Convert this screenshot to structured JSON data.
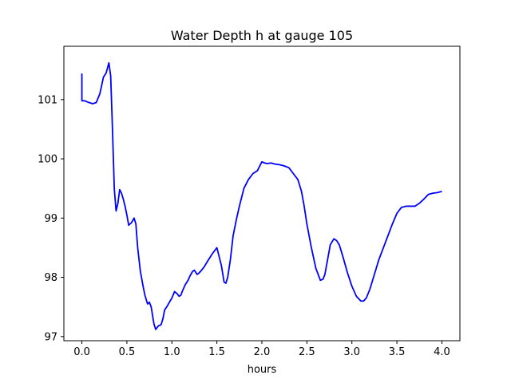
{
  "chart_data": {
    "type": "line",
    "title": "Water Depth h at gauge 105",
    "xlabel": "hours",
    "ylabel": "",
    "xlim": [
      -0.2,
      4.2
    ],
    "ylim": [
      96.93,
      101.9
    ],
    "xticks": [
      0.0,
      0.5,
      1.0,
      1.5,
      2.0,
      2.5,
      3.0,
      3.5,
      4.0
    ],
    "xtick_labels": [
      "0.0",
      "0.5",
      "1.0",
      "1.5",
      "2.0",
      "2.5",
      "3.0",
      "3.5",
      "4.0"
    ],
    "yticks": [
      97,
      98,
      99,
      100,
      101
    ],
    "ytick_labels": [
      "97",
      "98",
      "99",
      "100",
      "101"
    ],
    "grid": false,
    "series": [
      {
        "color": "#0000ff",
        "x": [
          0.0,
          0.0,
          0.03,
          0.08,
          0.12,
          0.16,
          0.2,
          0.24,
          0.27,
          0.3,
          0.32,
          0.34,
          0.36,
          0.38,
          0.4,
          0.42,
          0.44,
          0.46,
          0.48,
          0.5,
          0.52,
          0.55,
          0.58,
          0.6,
          0.62,
          0.65,
          0.68,
          0.7,
          0.73,
          0.75,
          0.77,
          0.8,
          0.82,
          0.85,
          0.88,
          0.9,
          0.92,
          0.95,
          0.98,
          1.0,
          1.03,
          1.06,
          1.08,
          1.1,
          1.12,
          1.15,
          1.18,
          1.2,
          1.23,
          1.25,
          1.28,
          1.3,
          1.33,
          1.36,
          1.4,
          1.45,
          1.5,
          1.55,
          1.58,
          1.6,
          1.62,
          1.65,
          1.68,
          1.7,
          1.72,
          1.75,
          1.8,
          1.85,
          1.9,
          1.95,
          2.0,
          2.03,
          2.06,
          2.1,
          2.15,
          2.2,
          2.25,
          2.3,
          2.35,
          2.4,
          2.44,
          2.47,
          2.5,
          2.55,
          2.6,
          2.65,
          2.68,
          2.7,
          2.73,
          2.76,
          2.8,
          2.83,
          2.86,
          2.9,
          2.95,
          3.0,
          3.05,
          3.1,
          3.13,
          3.16,
          3.2,
          3.25,
          3.3,
          3.35,
          3.4,
          3.45,
          3.5,
          3.55,
          3.6,
          3.65,
          3.7,
          3.75,
          3.8,
          3.85,
          3.9,
          3.95,
          4.0
        ],
        "y": [
          101.44,
          100.98,
          100.98,
          100.95,
          100.93,
          100.95,
          101.1,
          101.38,
          101.45,
          101.62,
          101.4,
          100.5,
          99.5,
          99.12,
          99.25,
          99.48,
          99.42,
          99.32,
          99.2,
          99.05,
          98.88,
          98.92,
          99.0,
          98.9,
          98.5,
          98.1,
          97.85,
          97.7,
          97.55,
          97.58,
          97.5,
          97.22,
          97.12,
          97.18,
          97.2,
          97.3,
          97.45,
          97.52,
          97.6,
          97.65,
          97.76,
          97.72,
          97.68,
          97.7,
          97.78,
          97.88,
          97.95,
          98.02,
          98.1,
          98.12,
          98.05,
          98.07,
          98.12,
          98.18,
          98.28,
          98.4,
          98.5,
          98.2,
          97.92,
          97.9,
          98.0,
          98.3,
          98.7,
          98.85,
          99.0,
          99.2,
          99.5,
          99.65,
          99.75,
          99.8,
          99.95,
          99.93,
          99.92,
          99.93,
          99.91,
          99.9,
          99.88,
          99.85,
          99.75,
          99.65,
          99.45,
          99.2,
          98.9,
          98.5,
          98.15,
          97.95,
          97.97,
          98.05,
          98.3,
          98.55,
          98.65,
          98.62,
          98.55,
          98.35,
          98.08,
          97.85,
          97.68,
          97.6,
          97.6,
          97.65,
          97.8,
          98.05,
          98.3,
          98.5,
          98.7,
          98.9,
          99.08,
          99.18,
          99.2,
          99.2,
          99.2,
          99.25,
          99.32,
          99.4,
          99.42,
          99.43,
          99.45
        ]
      }
    ]
  }
}
